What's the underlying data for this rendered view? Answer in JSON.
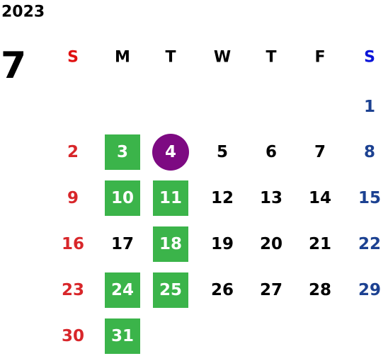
{
  "year": "2023",
  "month": "7",
  "weekdays": [
    "S",
    "M",
    "T",
    "W",
    "T",
    "F",
    "S"
  ],
  "weekday_colors": [
    "#e01010",
    "#000000",
    "#000000",
    "#000000",
    "#000000",
    "#000000",
    "#0a14d8"
  ],
  "day_colors": [
    "#d8262a",
    "#000000",
    "#000000",
    "#000000",
    "#000000",
    "#000000",
    "#1c4191"
  ],
  "highlight_colors": {
    "green": "#3bb44a",
    "purple": "#7d0a82"
  },
  "weeks": [
    [
      null,
      null,
      null,
      null,
      null,
      null,
      "1"
    ],
    [
      "2",
      {
        "day": "3",
        "highlight": "green"
      },
      {
        "day": "4",
        "highlight": "purple"
      },
      "5",
      "6",
      "7",
      "8"
    ],
    [
      "9",
      {
        "day": "10",
        "highlight": "green"
      },
      {
        "day": "11",
        "highlight": "green"
      },
      "12",
      "13",
      "14",
      "15"
    ],
    [
      "16",
      "17",
      {
        "day": "18",
        "highlight": "green"
      },
      "19",
      "20",
      "21",
      "22"
    ],
    [
      "23",
      {
        "day": "24",
        "highlight": "green"
      },
      {
        "day": "25",
        "highlight": "green"
      },
      "26",
      "27",
      "28",
      "29"
    ],
    [
      "30",
      {
        "day": "31",
        "highlight": "green"
      },
      null,
      null,
      null,
      null,
      null
    ]
  ]
}
